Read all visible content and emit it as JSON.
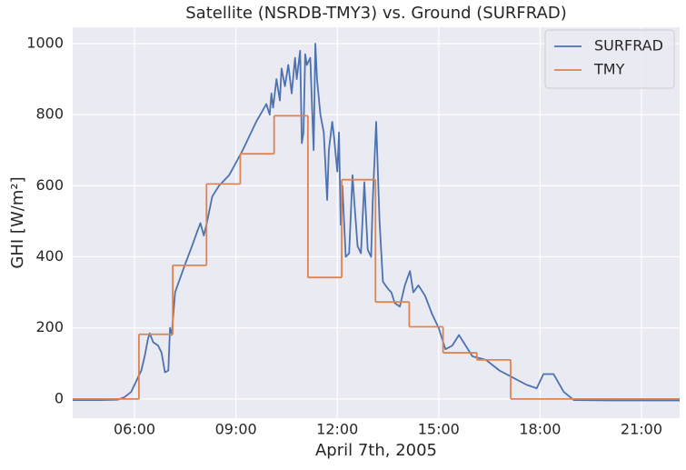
{
  "chart_data": {
    "type": "line",
    "title": "Satellite (NSRDB-TMY3) vs. Ground (SURFRAD)",
    "x_label": "April 7th, 2005",
    "y_label": "GHI [W/m²]",
    "xlim": [
      4.17,
      22.13
    ],
    "ylim": [
      -54,
      1046
    ],
    "xticks": [
      {
        "value": 6,
        "label": "06:00"
      },
      {
        "value": 9,
        "label": "09:00"
      },
      {
        "value": 12,
        "label": "12:00"
      },
      {
        "value": 15,
        "label": "15:00"
      },
      {
        "value": 18,
        "label": "18:00"
      },
      {
        "value": 21,
        "label": "21:00"
      }
    ],
    "yticks": [
      0,
      200,
      400,
      600,
      800,
      1000
    ],
    "grid": true,
    "legend": "upper right",
    "series": [
      {
        "name": "SURFRAD",
        "color": "#4c72b0",
        "x": [
          4.17,
          5.0,
          5.5,
          5.7,
          5.9,
          6.1,
          6.2,
          6.3,
          6.4,
          6.45,
          6.55,
          6.7,
          6.8,
          6.9,
          7.0,
          7.05,
          7.1,
          7.2,
          7.35,
          7.5,
          7.7,
          7.85,
          7.95,
          8.05,
          8.15,
          8.3,
          8.5,
          8.8,
          9.2,
          9.6,
          9.9,
          10.0,
          10.05,
          10.1,
          10.2,
          10.3,
          10.35,
          10.45,
          10.55,
          10.65,
          10.75,
          10.8,
          10.9,
          10.95,
          11.0,
          11.05,
          11.1,
          11.2,
          11.3,
          11.35,
          11.4,
          11.5,
          11.6,
          11.7,
          11.75,
          11.85,
          11.9,
          12.0,
          12.05,
          12.1,
          12.15,
          12.25,
          12.35,
          12.45,
          12.5,
          12.6,
          12.7,
          12.8,
          12.9,
          13.0,
          13.05,
          13.15,
          13.25,
          13.35,
          13.5,
          13.6,
          13.7,
          13.85,
          14.0,
          14.15,
          14.25,
          14.4,
          14.6,
          14.8,
          15.0,
          15.2,
          15.4,
          15.6,
          15.8,
          16.0,
          16.4,
          16.8,
          17.2,
          17.6,
          17.9,
          18.1,
          18.4,
          18.7,
          19.0,
          20.0,
          22.13
        ],
        "values": [
          -3,
          -3,
          -2,
          5,
          20,
          60,
          80,
          120,
          170,
          185,
          160,
          150,
          130,
          75,
          80,
          200,
          180,
          300,
          340,
          380,
          430,
          470,
          495,
          460,
          500,
          570,
          600,
          630,
          700,
          780,
          830,
          800,
          860,
          820,
          900,
          840,
          930,
          880,
          940,
          860,
          960,
          900,
          980,
          720,
          750,
          970,
          940,
          960,
          700,
          1000,
          900,
          800,
          750,
          560,
          700,
          780,
          740,
          640,
          750,
          490,
          600,
          400,
          410,
          630,
          560,
          430,
          410,
          610,
          420,
          400,
          560,
          780,
          500,
          330,
          310,
          300,
          270,
          260,
          320,
          360,
          300,
          320,
          290,
          240,
          200,
          140,
          150,
          180,
          150,
          120,
          110,
          80,
          60,
          40,
          30,
          70,
          70,
          20,
          -3,
          -4,
          -4
        ]
      },
      {
        "name": "TMY",
        "color": "#dd8452",
        "drawstyle": "steps-post",
        "x": [
          4.13,
          5.13,
          6.13,
          7.13,
          8.13,
          9.13,
          10.13,
          11.13,
          12.13,
          13.13,
          14.13,
          15.13,
          16.13,
          17.13,
          18.13,
          19.13,
          20.13,
          21.13,
          22.13
        ],
        "values": [
          0,
          0,
          182,
          376,
          605,
          690,
          797,
          342,
          617,
          273,
          203,
          130,
          110,
          0,
          0,
          0,
          0,
          0,
          0
        ]
      }
    ]
  }
}
